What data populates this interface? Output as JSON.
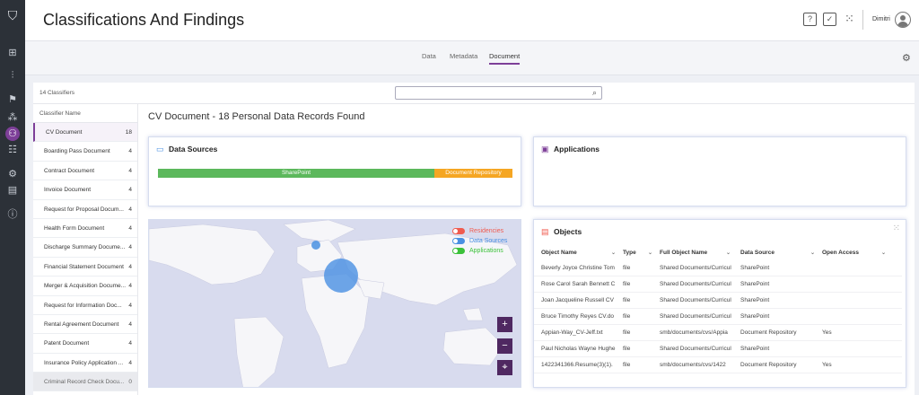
{
  "app": {
    "title": "Classifications And Findings",
    "user": "Dimitri"
  },
  "tabs": [
    "Data",
    "Metadata",
    "Document"
  ],
  "classifiers": {
    "count_label": "14 Classifiers",
    "column_header": "Classifier Name",
    "items": [
      {
        "label": "CV Document",
        "count": "18"
      },
      {
        "label": "Boarding Pass Document",
        "count": "4"
      },
      {
        "label": "Contract Document",
        "count": "4"
      },
      {
        "label": "Invoice Document",
        "count": "4"
      },
      {
        "label": "Request for Proposal Docum...",
        "count": "4"
      },
      {
        "label": "Health Form Document",
        "count": "4"
      },
      {
        "label": "Discharge Summary Docume...",
        "count": "4"
      },
      {
        "label": "Financial Statement Document",
        "count": "4"
      },
      {
        "label": "Merger & Acquisition Docume...",
        "count": "4"
      },
      {
        "label": "Request for Information Doc...",
        "count": "4"
      },
      {
        "label": "Rental Agreement Document",
        "count": "4"
      },
      {
        "label": "Patent Document",
        "count": "4"
      },
      {
        "label": "Insurance Policy Application ...",
        "count": "4"
      },
      {
        "label": "Criminal Record Check Docu...",
        "count": "0"
      }
    ]
  },
  "detail": {
    "heading": "CV Document - 18 Personal Data Records Found"
  },
  "data_sources": {
    "title": "Data Sources",
    "segments": [
      {
        "label": "SharePoint",
        "fraction": 0.78,
        "color": "#5cb85c"
      },
      {
        "label": "Document Repository",
        "fraction": 0.22,
        "color": "#f5a623"
      }
    ]
  },
  "applications": {
    "title": "Applications"
  },
  "map": {
    "legend": [
      {
        "label": "Residencies",
        "color": "#f05b4f"
      },
      {
        "label": "Data Sources",
        "color": "#4a90e2"
      },
      {
        "label": "Applications",
        "color": "#3cc13b"
      }
    ],
    "zoom_in": "+",
    "zoom_out": "−"
  },
  "objects": {
    "title": "Objects",
    "columns": [
      "Object Name",
      "Type",
      "Full Object Name",
      "Data Source",
      "Open Access"
    ],
    "rows": [
      [
        "Beverly Joyce Christine Tom",
        "file",
        "Shared Documents/Curricul",
        "SharePoint",
        ""
      ],
      [
        "Rose Carol Sarah Bennett C",
        "file",
        "Shared Documents/Curricul",
        "SharePoint",
        ""
      ],
      [
        "Joan Jacqueline Russell CV",
        "file",
        "Shared Documents/Curricul",
        "SharePoint",
        ""
      ],
      [
        "Bruce Timothy Reyes CV.do",
        "file",
        "Shared Documents/Curricul",
        "SharePoint",
        ""
      ],
      [
        "Appian-Way_CV-Jeff.txt",
        "file",
        "smb/documents/cvs/Appia",
        "Document Repository",
        "Yes"
      ],
      [
        "Paul Nicholas Wayne Hughe",
        "file",
        "Shared Documents/Curricul",
        "SharePoint",
        ""
      ],
      [
        "1422341366.Resume(3)(1).",
        "file",
        "smb/documents/cvs/1422",
        "Document Repository",
        "Yes"
      ]
    ]
  }
}
